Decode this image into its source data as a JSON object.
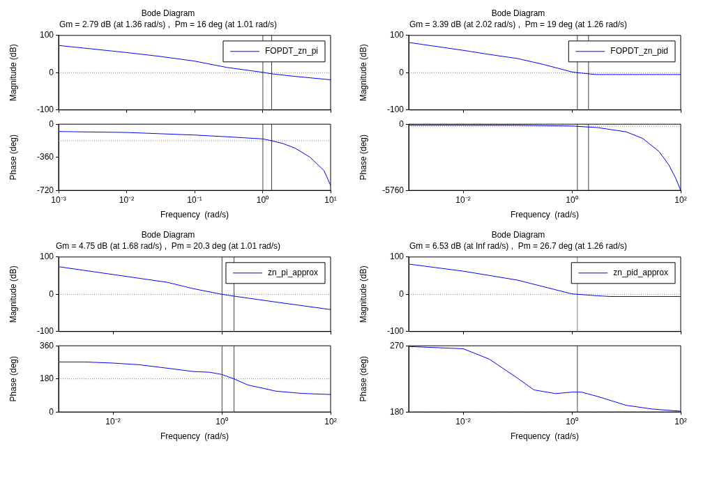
{
  "chart_data": [
    {
      "type": "line",
      "title": "Bode Diagram",
      "subtitle": "Gm = 2.79 dB (at 1.36 rad/s) ,  Pm = 16 deg (at 1.01 rad/s)",
      "ylabel": "Magnitude (dB)",
      "log": "x",
      "xlim": [
        0.001,
        10
      ],
      "xticks": [
        {
          "value": 0.001,
          "label": null
        },
        {
          "value": 0.01,
          "label": null
        },
        {
          "value": 0.1,
          "label": null
        },
        {
          "value": 1,
          "label": null
        },
        {
          "value": 10,
          "label": null
        }
      ],
      "ylim": [
        -100,
        100
      ],
      "yticks": [
        -100,
        0,
        100
      ],
      "tick_labels": "y",
      "legend": "top right",
      "series": [
        {
          "name": "FOPDT_zn_pi",
          "color": "#0000ff",
          "x": [
            0.001,
            0.003,
            0.01,
            0.03,
            0.1,
            0.3,
            1,
            1.36,
            3,
            10
          ],
          "values": [
            73,
            64,
            54,
            44,
            31,
            14,
            1,
            -3,
            -10,
            -19
          ]
        }
      ],
      "ref_lines": [
        {
          "axis": "y",
          "value": 0,
          "color": "#808080",
          "line_style": "dotted"
        },
        {
          "axis": "x",
          "value": 1.01,
          "color": "#404040",
          "line_style": "solid"
        },
        {
          "axis": "x",
          "value": 1.36,
          "color": "#404040",
          "line_style": "solid"
        }
      ]
    },
    {
      "type": "line",
      "xlabel": "Frequency  (rad/s)",
      "ylabel": "Phase (deg)",
      "log": "x",
      "xlim": [
        0.001,
        10
      ],
      "xticks": [
        {
          "value": 0.001,
          "label": "10⁻³"
        },
        {
          "value": 0.01,
          "label": "10⁻²"
        },
        {
          "value": 0.1,
          "label": "10⁻¹"
        },
        {
          "value": 1,
          "label": "10⁰"
        },
        {
          "value": 10,
          "label": "10¹"
        }
      ],
      "ylim": [
        -720,
        0
      ],
      "yticks": [
        -720,
        -360,
        0
      ],
      "series": [
        {
          "color": "#0000ff",
          "x": [
            0.001,
            0.01,
            0.1,
            0.3,
            1,
            1.36,
            2,
            3,
            5,
            8,
            10
          ],
          "values": [
            -80,
            -90,
            -118,
            -137,
            -160,
            -180,
            -211,
            -260,
            -360,
            -505,
            -665
          ]
        }
      ],
      "ref_lines": [
        {
          "axis": "y",
          "value": -180,
          "color": "#808080",
          "line_style": "dotted"
        },
        {
          "axis": "x",
          "value": 1.01,
          "color": "#404040",
          "line_style": "solid"
        },
        {
          "axis": "x",
          "value": 1.36,
          "color": "#404040",
          "line_style": "solid"
        }
      ]
    },
    {
      "type": "line",
      "title": "Bode Diagram",
      "subtitle": "Gm = 3.39 dB (at 2.02 rad/s) ,  Pm = 19 deg (at 1.26 rad/s)",
      "ylabel": "Magnitude (dB)",
      "log": "x",
      "xlim": [
        0.001,
        100
      ],
      "xticks": [
        {
          "value": 0.01,
          "label": null
        },
        {
          "value": 1,
          "label": null
        },
        {
          "value": 100,
          "label": null
        }
      ],
      "ylim": [
        -100,
        100
      ],
      "yticks": [
        -100,
        0,
        100
      ],
      "tick_labels": "y",
      "legend": "top right",
      "series": [
        {
          "name": "FOPDT_zn_pid",
          "color": "#0000ff",
          "x": [
            0.001,
            0.01,
            0.03,
            0.1,
            0.3,
            1,
            1.26,
            2.8,
            100
          ],
          "values": [
            81,
            60,
            49,
            38,
            22,
            2,
            0,
            -5,
            -5
          ]
        }
      ],
      "ref_lines": [
        {
          "axis": "y",
          "value": 0,
          "color": "#808080",
          "line_style": "dotted"
        },
        {
          "axis": "x",
          "value": 1.26,
          "color": "#404040",
          "line_style": "solid"
        },
        {
          "axis": "x",
          "value": 2.02,
          "color": "#404040",
          "line_style": "solid"
        }
      ]
    },
    {
      "type": "line",
      "xlabel": "Frequency  (rad/s)",
      "ylabel": "Phase (deg)",
      "log": "x",
      "xlim": [
        0.001,
        100
      ],
      "xticks": [
        {
          "value": 0.01,
          "label": "10⁻²"
        },
        {
          "value": 1,
          "label": "10⁰"
        },
        {
          "value": 100,
          "label": "10²"
        }
      ],
      "ylim": [
        -5760,
        0
      ],
      "yticks": [
        -5760,
        0
      ],
      "series": [
        {
          "color": "#0000ff",
          "x": [
            0.001,
            0.1,
            1,
            3,
            10,
            20,
            40,
            60,
            80,
            100
          ],
          "values": [
            -90,
            -95,
            -160,
            -300,
            -670,
            -1240,
            -2380,
            -3520,
            -4650,
            -5760
          ]
        }
      ],
      "ref_lines": [
        {
          "axis": "y",
          "value": -180,
          "color": "#808080",
          "line_style": "dotted"
        },
        {
          "axis": "x",
          "value": 1.26,
          "color": "#404040",
          "line_style": "solid"
        },
        {
          "axis": "x",
          "value": 2.02,
          "color": "#404040",
          "line_style": "solid"
        }
      ]
    },
    {
      "type": "line",
      "title": "Bode Diagram",
      "subtitle": "Gm = 4.75 dB (at 1.68 rad/s) ,  Pm = 20.3 deg (at 1.01 rad/s)",
      "ylabel": "Magnitude (dB)",
      "log": "x",
      "xlim": [
        0.001,
        100
      ],
      "xticks": [
        {
          "value": 0.01,
          "label": null
        },
        {
          "value": 1,
          "label": null
        },
        {
          "value": 100,
          "label": null
        }
      ],
      "ylim": [
        -100,
        100
      ],
      "yticks": [
        -100,
        0,
        100
      ],
      "tick_labels": "y",
      "legend": "top right",
      "series": [
        {
          "name": "zn_pi_approx",
          "color": "#0000ff",
          "x": [
            0.001,
            0.01,
            0.1,
            0.3,
            1,
            1.68,
            10,
            100
          ],
          "values": [
            74,
            53,
            32,
            15,
            0,
            -5,
            -21,
            -41
          ]
        }
      ],
      "ref_lines": [
        {
          "axis": "y",
          "value": 0,
          "color": "#808080",
          "line_style": "dotted"
        },
        {
          "axis": "x",
          "value": 1.01,
          "color": "#404040",
          "line_style": "solid"
        },
        {
          "axis": "x",
          "value": 1.68,
          "color": "#404040",
          "line_style": "solid"
        }
      ]
    },
    {
      "type": "line",
      "xlabel": "Frequency  (rad/s)",
      "ylabel": "Phase (deg)",
      "log": "x",
      "xlim": [
        0.001,
        100
      ],
      "xticks": [
        {
          "value": 0.01,
          "label": "10⁻²"
        },
        {
          "value": 1,
          "label": "10⁰"
        },
        {
          "value": 100,
          "label": "10²"
        }
      ],
      "ylim": [
        0,
        360
      ],
      "yticks": [
        0,
        180,
        360
      ],
      "series": [
        {
          "color": "#0000ff",
          "x": [
            0.001,
            0.003,
            0.01,
            0.03,
            0.1,
            0.3,
            0.6,
            1,
            1.68,
            3,
            10,
            30,
            100
          ],
          "values": [
            272,
            272,
            266,
            257,
            238,
            220,
            216,
            204,
            180,
            147,
            113,
            101,
            95
          ]
        }
      ],
      "ref_lines": [
        {
          "axis": "y",
          "value": 180,
          "color": "#808080",
          "line_style": "dotted"
        },
        {
          "axis": "x",
          "value": 1.01,
          "color": "#404040",
          "line_style": "solid"
        },
        {
          "axis": "x",
          "value": 1.68,
          "color": "#404040",
          "line_style": "solid"
        }
      ]
    },
    {
      "type": "line",
      "title": "Bode Diagram",
      "subtitle": "Gm = 6.53 dB (at Inf rad/s) ,  Pm = 26.7 deg (at 1.26 rad/s)",
      "ylabel": "Magnitude (dB)",
      "log": "x",
      "xlim": [
        0.001,
        100
      ],
      "xticks": [
        {
          "value": 0.01,
          "label": null
        },
        {
          "value": 1,
          "label": null
        },
        {
          "value": 100,
          "label": null
        }
      ],
      "ylim": [
        -100,
        100
      ],
      "yticks": [
        -100,
        0,
        100
      ],
      "tick_labels": "y",
      "legend": "top right",
      "series": [
        {
          "name": "zn_pid_approx",
          "color": "#0000ff",
          "x": [
            0.001,
            0.01,
            0.1,
            1,
            1.26,
            3,
            5,
            100
          ],
          "values": [
            81,
            62,
            38,
            1,
            0,
            -4,
            -6,
            -6
          ]
        }
      ],
      "ref_lines": [
        {
          "axis": "y",
          "value": 0,
          "color": "#808080",
          "line_style": "dotted"
        },
        {
          "axis": "x",
          "value": 1.26,
          "color": "#808080",
          "line_style": "solid"
        }
      ]
    },
    {
      "type": "line",
      "xlabel": "Frequency  (rad/s)",
      "ylabel": "Phase (deg)",
      "log": "x",
      "xlim": [
        0.001,
        100
      ],
      "xticks": [
        {
          "value": 0.01,
          "label": "10⁻²"
        },
        {
          "value": 1,
          "label": "10⁰"
        },
        {
          "value": 100,
          "label": "10²"
        }
      ],
      "ylim": [
        180,
        270
      ],
      "yticks": [
        180,
        270
      ],
      "series": [
        {
          "color": "#0000ff",
          "x": [
            0.001,
            0.01,
            0.03,
            0.1,
            0.2,
            0.5,
            1,
            1.5,
            3,
            10,
            30,
            100
          ],
          "values": [
            269,
            266,
            252,
            226,
            210,
            205,
            207,
            207,
            201,
            189,
            184,
            181
          ]
        }
      ],
      "ref_lines": [
        {
          "axis": "y",
          "value": 180,
          "color": "#808080",
          "line_style": "dotted"
        },
        {
          "axis": "x",
          "value": 1.26,
          "color": "#404040",
          "line_style": "solid"
        }
      ]
    }
  ]
}
